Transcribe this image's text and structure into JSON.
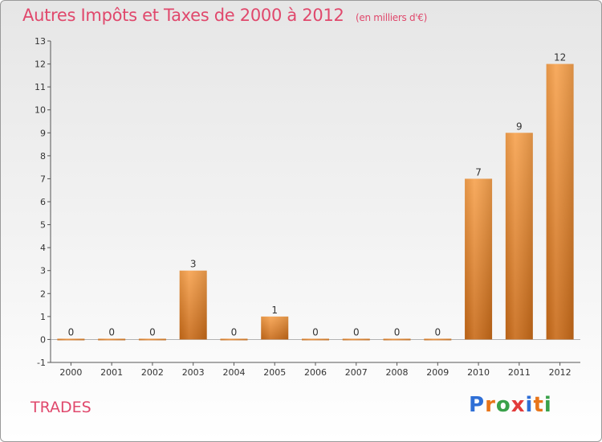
{
  "chart_data": {
    "type": "bar",
    "title": "Autres Impôts et Taxes de 2000 à 2012",
    "subtitle": "(en milliers d'€)",
    "categories": [
      "2000",
      "2001",
      "2002",
      "2003",
      "2004",
      "2005",
      "2006",
      "2007",
      "2008",
      "2009",
      "2010",
      "2011",
      "2012"
    ],
    "values": [
      0,
      0,
      0,
      3,
      0,
      1,
      0,
      0,
      0,
      0,
      7,
      9,
      12
    ],
    "ylim": [
      -1,
      13
    ],
    "yticks": [
      -1,
      0,
      1,
      2,
      3,
      4,
      5,
      6,
      7,
      8,
      9,
      10,
      11,
      12,
      13
    ],
    "grid": false,
    "bar_color": "#f0913a",
    "xlabel": "",
    "ylabel": ""
  },
  "footer": {
    "commune": "TRADES",
    "brand_letters": [
      "P",
      "r",
      "o",
      "x",
      "i",
      "t",
      "i"
    ]
  }
}
